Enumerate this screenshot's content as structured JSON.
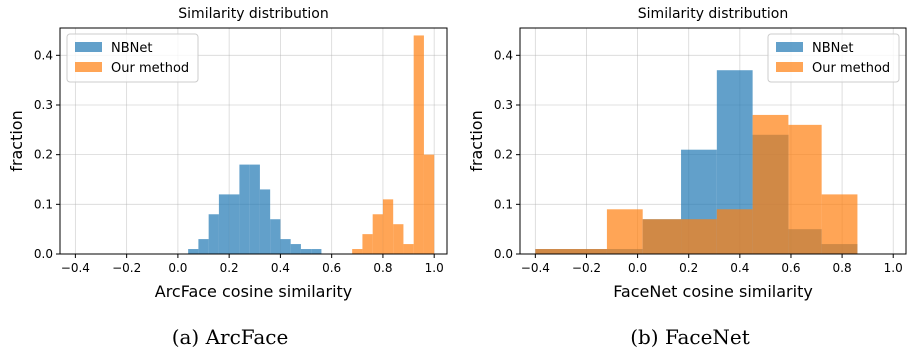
{
  "chart_data": [
    {
      "type": "bar",
      "subtype": "histogram",
      "title": "Similarity distribution",
      "xlabel": "ArcFace cosine similarity",
      "ylabel": "fraction",
      "caption": "(a) ArcFace",
      "xlim": [
        -0.46,
        1.05
      ],
      "ylim": [
        0,
        0.455
      ],
      "xticks": [
        -0.4,
        -0.2,
        0.0,
        0.2,
        0.4,
        0.6,
        0.8,
        1.0
      ],
      "xtick_labels": [
        "−0.4",
        "−0.2",
        "0.0",
        "0.2",
        "0.4",
        "0.6",
        "0.8",
        "1.0"
      ],
      "yticks": [
        0.0,
        0.1,
        0.2,
        0.3,
        0.4
      ],
      "ytick_labels": [
        "0.0",
        "0.1",
        "0.2",
        "0.3",
        "0.4"
      ],
      "grid": true,
      "legend_position": "top-left",
      "series": [
        {
          "name": "NBNet",
          "color": "#1f77b4",
          "bins": [
            [
              0.04,
              0.08,
              0.01
            ],
            [
              0.08,
              0.12,
              0.03
            ],
            [
              0.12,
              0.16,
              0.08
            ],
            [
              0.16,
              0.2,
              0.12
            ],
            [
              0.2,
              0.24,
              0.12
            ],
            [
              0.24,
              0.28,
              0.18
            ],
            [
              0.28,
              0.32,
              0.18
            ],
            [
              0.32,
              0.36,
              0.13
            ],
            [
              0.36,
              0.4,
              0.07
            ],
            [
              0.4,
              0.44,
              0.03
            ],
            [
              0.44,
              0.48,
              0.02
            ],
            [
              0.48,
              0.52,
              0.01
            ],
            [
              0.52,
              0.56,
              0.01
            ],
            [
              0.56,
              0.6,
              0.0
            ]
          ]
        },
        {
          "name": "Our method",
          "color": "#ff7f0e",
          "bins": [
            [
              0.68,
              0.72,
              0.01
            ],
            [
              0.72,
              0.76,
              0.04
            ],
            [
              0.76,
              0.8,
              0.08
            ],
            [
              0.8,
              0.84,
              0.11
            ],
            [
              0.84,
              0.88,
              0.06
            ],
            [
              0.88,
              0.92,
              0.02
            ],
            [
              0.92,
              0.96,
              0.44
            ],
            [
              0.96,
              1.0,
              0.2
            ]
          ]
        }
      ]
    },
    {
      "type": "bar",
      "subtype": "histogram",
      "title": "Similarity distribution",
      "xlabel": "FaceNet cosine similarity",
      "ylabel": "fraction",
      "caption": "(b) FaceNet",
      "xlim": [
        -0.46,
        1.05
      ],
      "ylim": [
        0,
        0.455
      ],
      "xticks": [
        -0.4,
        -0.2,
        0.0,
        0.2,
        0.4,
        0.6,
        0.8,
        1.0
      ],
      "xtick_labels": [
        "−0.4",
        "−0.2",
        "0.0",
        "0.2",
        "0.4",
        "0.6",
        "0.8",
        "1.0"
      ],
      "yticks": [
        0.0,
        0.1,
        0.2,
        0.3,
        0.4
      ],
      "ytick_labels": [
        "0.0",
        "0.1",
        "0.2",
        "0.3",
        "0.4"
      ],
      "grid": true,
      "legend_position": "top-right",
      "series": [
        {
          "name": "NBNet",
          "color": "#1f77b4",
          "bins": [
            [
              -0.4,
              -0.12,
              0.01
            ],
            [
              -0.12,
              0.02,
              0.01
            ],
            [
              0.02,
              0.17,
              0.07
            ],
            [
              0.17,
              0.31,
              0.21
            ],
            [
              0.31,
              0.45,
              0.37
            ],
            [
              0.45,
              0.59,
              0.24
            ],
            [
              0.59,
              0.72,
              0.05
            ],
            [
              0.72,
              0.86,
              0.02
            ]
          ]
        },
        {
          "name": "Our method",
          "color": "#ff7f0e",
          "bins": [
            [
              -0.4,
              -0.12,
              0.01
            ],
            [
              -0.12,
              0.02,
              0.09
            ],
            [
              0.02,
              0.17,
              0.07
            ],
            [
              0.17,
              0.31,
              0.07
            ],
            [
              0.31,
              0.45,
              0.09
            ],
            [
              0.45,
              0.59,
              0.28
            ],
            [
              0.59,
              0.72,
              0.26
            ],
            [
              0.72,
              0.86,
              0.12
            ]
          ]
        }
      ]
    }
  ]
}
